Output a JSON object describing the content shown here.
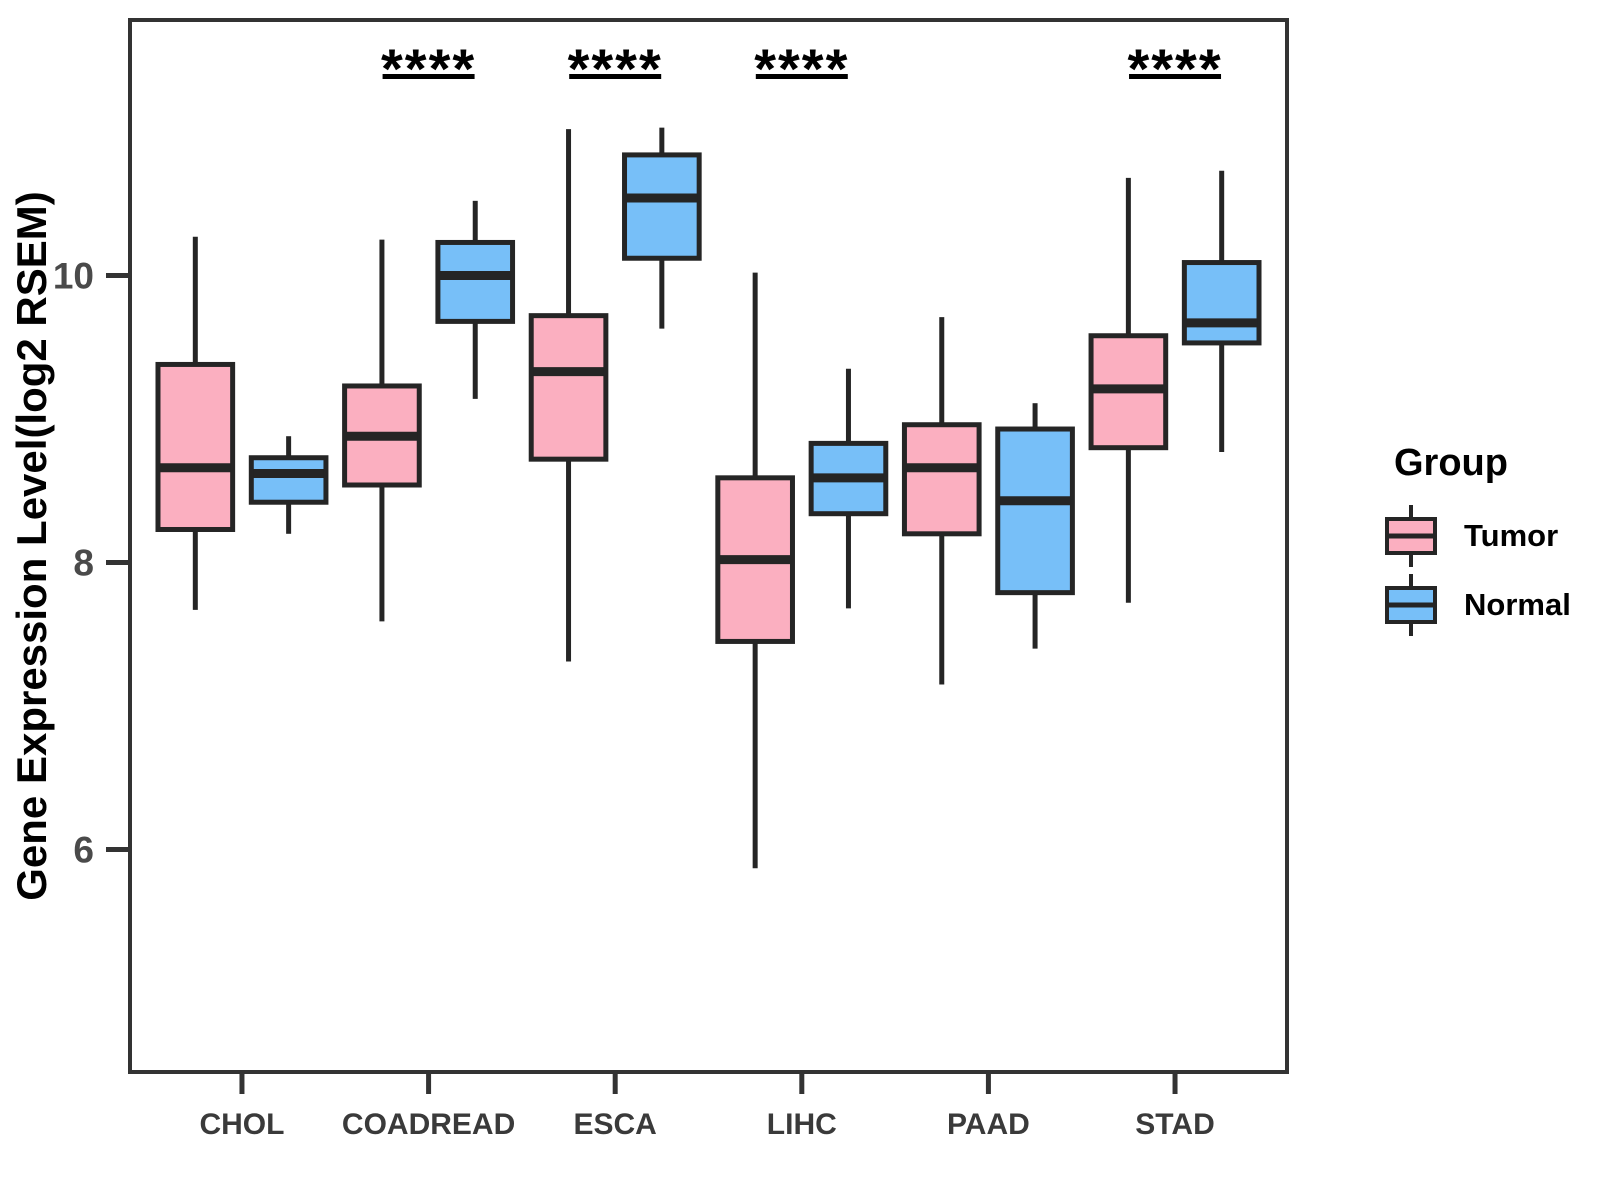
{
  "figure": {
    "background": "#ffffff"
  },
  "chart_data": {
    "type": "boxplot",
    "title": "",
    "xlabel": "",
    "ylabel": "Gene Expression Level(log2 RSEM)",
    "categories": [
      "CHOL",
      "COADREAD",
      "ESCA",
      "LIHC",
      "PAAD",
      "STAD"
    ],
    "y_ticks": [
      6,
      8,
      10
    ],
    "ylim": [
      4.45,
      11.78
    ],
    "grid": false,
    "legend": {
      "title": "Group",
      "position": "right",
      "items": [
        {
          "label": "Tumor",
          "color": "#FBAFC0"
        },
        {
          "label": "Normal",
          "color": "#77BFF8"
        }
      ]
    },
    "series": [
      {
        "name": "Tumor",
        "color": "#FBAFC0",
        "boxes": [
          {
            "category": "CHOL",
            "whisker_low": 7.67,
            "q1": 8.23,
            "median": 8.66,
            "q3": 9.38,
            "whisker_high": 10.27
          },
          {
            "category": "COADREAD",
            "whisker_low": 7.59,
            "q1": 8.54,
            "median": 8.88,
            "q3": 9.23,
            "whisker_high": 10.25
          },
          {
            "category": "ESCA",
            "whisker_low": 7.31,
            "q1": 8.72,
            "median": 9.33,
            "q3": 9.72,
            "whisker_high": 11.02
          },
          {
            "category": "LIHC",
            "whisker_low": 5.87,
            "q1": 7.45,
            "median": 8.02,
            "q3": 8.59,
            "whisker_high": 10.02
          },
          {
            "category": "PAAD",
            "whisker_low": 7.15,
            "q1": 8.2,
            "median": 8.66,
            "q3": 8.96,
            "whisker_high": 9.71
          },
          {
            "category": "STAD",
            "whisker_low": 7.72,
            "q1": 8.8,
            "median": 9.21,
            "q3": 9.58,
            "whisker_high": 10.68
          }
        ]
      },
      {
        "name": "Normal",
        "color": "#77BFF8",
        "boxes": [
          {
            "category": "CHOL",
            "whisker_low": 8.2,
            "q1": 8.42,
            "median": 8.62,
            "q3": 8.73,
            "whisker_high": 8.88
          },
          {
            "category": "COADREAD",
            "whisker_low": 9.14,
            "q1": 9.68,
            "median": 10.0,
            "q3": 10.23,
            "whisker_high": 10.52
          },
          {
            "category": "ESCA",
            "whisker_low": 9.63,
            "q1": 10.12,
            "median": 10.54,
            "q3": 10.84,
            "whisker_high": 11.03
          },
          {
            "category": "LIHC",
            "whisker_low": 7.68,
            "q1": 8.34,
            "median": 8.59,
            "q3": 8.83,
            "whisker_high": 9.35
          },
          {
            "category": "PAAD",
            "whisker_low": 7.4,
            "q1": 7.79,
            "median": 8.43,
            "q3": 8.93,
            "whisker_high": 9.11
          },
          {
            "category": "STAD",
            "whisker_low": 8.77,
            "q1": 9.53,
            "median": 9.67,
            "q3": 10.09,
            "whisker_high": 10.73
          }
        ]
      }
    ],
    "significance": [
      {
        "category": "COADREAD",
        "label": "****"
      },
      {
        "category": "ESCA",
        "label": "****"
      },
      {
        "category": "LIHC",
        "label": "****"
      },
      {
        "category": "STAD",
        "label": "****"
      }
    ]
  },
  "colors": {
    "tumor_fill": "#FBAFC0",
    "normal_fill": "#77BFF8",
    "box_stroke": "#252525",
    "axis_line": "#333333",
    "tick_label": "#4a4a4a",
    "category_label": "#3a3a3a",
    "significance": "#000000"
  }
}
